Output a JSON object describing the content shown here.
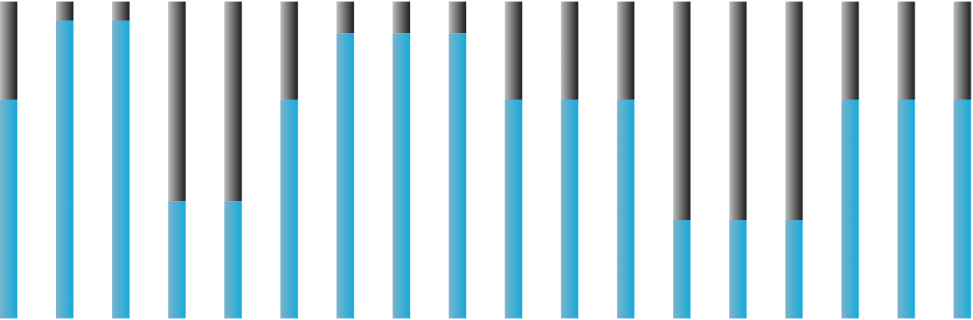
{
  "chart_data": {
    "type": "bar",
    "stacked": true,
    "title": "",
    "xlabel": "",
    "ylabel": "",
    "ylim": [
      0,
      1
    ],
    "grid": false,
    "legend": "none",
    "bar_count": 18,
    "series": [
      {
        "role": "fill",
        "color": "#1aa8d6",
        "values": [
          0.69,
          0.94,
          0.94,
          0.37,
          0.37,
          0.69,
          0.9,
          0.9,
          0.9,
          0.69,
          0.69,
          0.69,
          0.31,
          0.31,
          0.31,
          0.69,
          0.69,
          0.69
        ]
      },
      {
        "role": "remainder",
        "color": "#5a5a5a",
        "values": [
          0.31,
          0.06,
          0.06,
          0.63,
          0.63,
          0.31,
          0.1,
          0.1,
          0.1,
          0.31,
          0.31,
          0.31,
          0.69,
          0.69,
          0.69,
          0.31,
          0.31,
          0.31
        ]
      }
    ]
  }
}
